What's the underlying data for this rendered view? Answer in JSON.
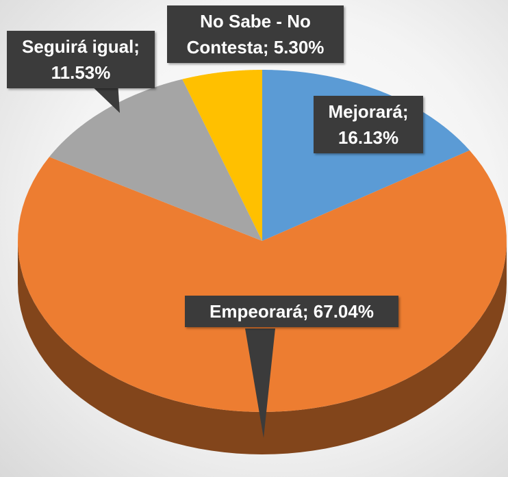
{
  "chart_data": {
    "type": "pie",
    "values": [
      16.13,
      67.04,
      11.53,
      5.3
    ],
    "value_labels": [
      "Mejorará; 16.13%",
      "Empeorará; 67.04%",
      "Seguirá igual; 11.53%",
      "No Sabe - No Contesta; 5.30%"
    ],
    "colors": [
      "#5b9bd5",
      "#ed7d31",
      "#a5a5a5",
      "#ffc000"
    ]
  }
}
